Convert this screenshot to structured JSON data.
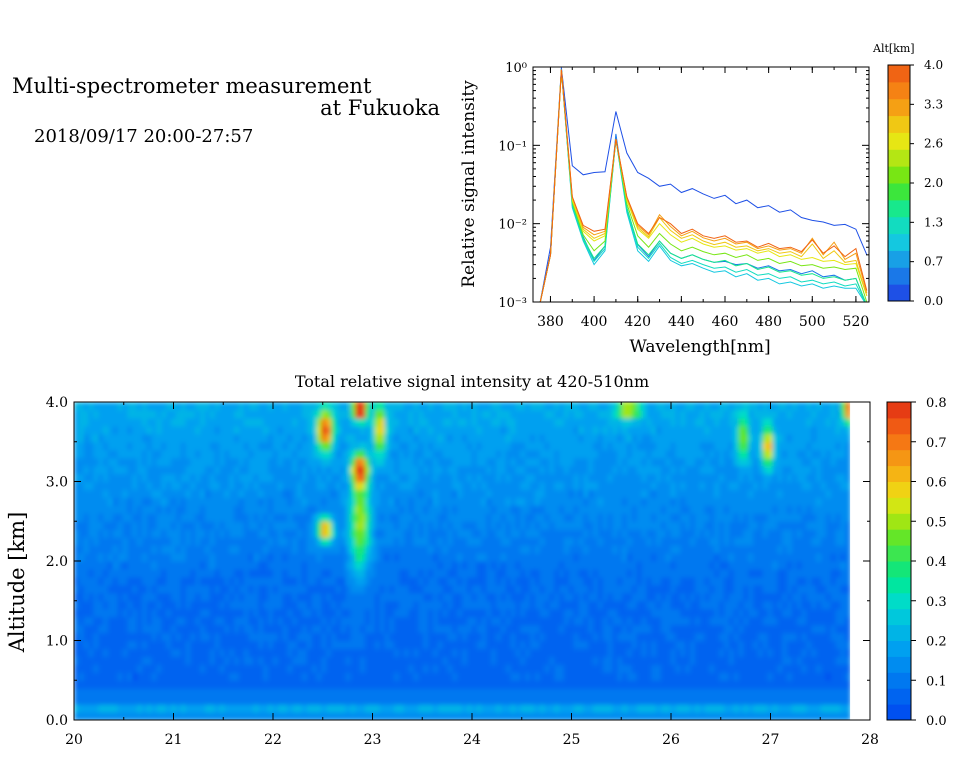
{
  "header": {
    "title_line1": "Multi-spectrometer measurement",
    "title_line2": "at Fukuoka",
    "datetime": "2018/09/17 20:00-27:57"
  },
  "chart_data": [
    {
      "type": "line",
      "title": "",
      "xlabel": "Wavelength[nm]",
      "ylabel": "Relative signal intensity",
      "x_ticks": [
        380,
        400,
        420,
        440,
        460,
        480,
        500,
        520
      ],
      "xlim": [
        372,
        526
      ],
      "ylim": [
        0.001,
        1
      ],
      "yscale": "log",
      "y_tick_labels": [
        "10⁻³",
        "10⁻²",
        "10⁻¹",
        "10⁰"
      ],
      "colorbar": {
        "label": "Alt[km]",
        "tick_labels": [
          "4.0",
          "3.3",
          "2.6",
          "2.0",
          "1.3",
          "0.7",
          "0.0"
        ],
        "range": [
          0,
          4
        ],
        "colors": [
          "#1e50e6",
          "#1a78e8",
          "#18a0e6",
          "#14c8e0",
          "#12dcc0",
          "#18e88c",
          "#3ce63c",
          "#78e614",
          "#b4e614",
          "#e6e614",
          "#f0c814",
          "#f5a014",
          "#f58214",
          "#f06414"
        ]
      },
      "x": [
        375,
        380,
        385,
        390,
        395,
        400,
        405,
        410,
        415,
        420,
        425,
        430,
        435,
        440,
        445,
        450,
        455,
        460,
        465,
        470,
        475,
        480,
        485,
        490,
        495,
        500,
        505,
        510,
        515,
        520,
        525
      ],
      "series": [
        {
          "alt": 0.05,
          "color": "#1e50e6",
          "values": [
            0.0009,
            0.005,
            0.98,
            0.055,
            0.042,
            0.045,
            0.046,
            0.27,
            0.08,
            0.045,
            0.038,
            0.03,
            0.032,
            0.025,
            0.028,
            0.024,
            0.021,
            0.023,
            0.018,
            0.02,
            0.016,
            0.017,
            0.014,
            0.015,
            0.012,
            0.011,
            0.0105,
            0.0095,
            0.0098,
            0.0085,
            0.004
          ]
        },
        {
          "alt": 0.5,
          "color": "#1a78e8",
          "values": [
            0.0009,
            0.004,
            0.95,
            0.018,
            0.0068,
            0.0034,
            0.0052,
            0.14,
            0.016,
            0.0054,
            0.0038,
            0.006,
            0.0042,
            0.0036,
            0.004,
            0.0035,
            0.0032,
            0.0033,
            0.003,
            0.0031,
            0.0027,
            0.0029,
            0.0025,
            0.0026,
            0.0023,
            0.0025,
            0.0021,
            0.0022,
            0.0019,
            0.002,
            0.0009
          ]
        },
        {
          "alt": 1.0,
          "color": "#14c8e0",
          "values": [
            0.0009,
            0.004,
            0.93,
            0.016,
            0.006,
            0.003,
            0.0045,
            0.12,
            0.014,
            0.0045,
            0.0033,
            0.0052,
            0.0034,
            0.0029,
            0.0031,
            0.0027,
            0.0024,
            0.0025,
            0.0021,
            0.0023,
            0.0019,
            0.002,
            0.0017,
            0.0018,
            0.0016,
            0.0017,
            0.0015,
            0.0016,
            0.0015,
            0.0015,
            0.0009
          ]
        },
        {
          "alt": 1.3,
          "color": "#12dcc0",
          "values": [
            0.0009,
            0.004,
            0.92,
            0.017,
            0.0062,
            0.0033,
            0.0048,
            0.12,
            0.015,
            0.005,
            0.0036,
            0.0056,
            0.0037,
            0.0031,
            0.0034,
            0.003,
            0.0027,
            0.0028,
            0.0024,
            0.0026,
            0.0022,
            0.0023,
            0.002,
            0.0021,
            0.0018,
            0.0019,
            0.0017,
            0.0018,
            0.0016,
            0.0017,
            0.0009
          ]
        },
        {
          "alt": 1.7,
          "color": "#18e88c",
          "values": [
            0.0009,
            0.004,
            0.92,
            0.018,
            0.0065,
            0.0036,
            0.0052,
            0.12,
            0.016,
            0.0055,
            0.004,
            0.006,
            0.0042,
            0.0036,
            0.004,
            0.0035,
            0.0032,
            0.0034,
            0.0029,
            0.0031,
            0.0026,
            0.0028,
            0.0024,
            0.0025,
            0.0022,
            0.0023,
            0.002,
            0.0021,
            0.0019,
            0.002,
            0.0009
          ]
        },
        {
          "alt": 2.2,
          "color": "#78e614",
          "values": [
            0.0009,
            0.004,
            0.92,
            0.019,
            0.0072,
            0.0045,
            0.006,
            0.12,
            0.018,
            0.007,
            0.005,
            0.0075,
            0.0055,
            0.0045,
            0.005,
            0.0044,
            0.004,
            0.0042,
            0.0037,
            0.004,
            0.0034,
            0.0036,
            0.0031,
            0.0033,
            0.0029,
            0.003,
            0.0027,
            0.0028,
            0.0026,
            0.0027,
            0.001
          ]
        },
        {
          "alt": 2.7,
          "color": "#e6e614",
          "values": [
            0.0009,
            0.004,
            0.92,
            0.02,
            0.008,
            0.006,
            0.007,
            0.12,
            0.02,
            0.0085,
            0.0065,
            0.01,
            0.0072,
            0.0058,
            0.0065,
            0.0055,
            0.005,
            0.0052,
            0.0046,
            0.0048,
            0.0042,
            0.0045,
            0.0038,
            0.004,
            0.0035,
            0.0037,
            0.0033,
            0.0034,
            0.003,
            0.0031,
            0.0012
          ]
        },
        {
          "alt": 3.1,
          "color": "#f0c814",
          "values": [
            0.0009,
            0.004,
            0.92,
            0.021,
            0.0085,
            0.0065,
            0.0075,
            0.12,
            0.021,
            0.009,
            0.0068,
            0.012,
            0.0082,
            0.0065,
            0.0072,
            0.006,
            0.0054,
            0.0058,
            0.005,
            0.0052,
            0.0045,
            0.0048,
            0.0042,
            0.0044,
            0.0038,
            0.0055,
            0.0036,
            0.0045,
            0.0032,
            0.0034,
            0.0012
          ]
        },
        {
          "alt": 3.5,
          "color": "#f5a014",
          "values": [
            0.0009,
            0.004,
            0.92,
            0.022,
            0.009,
            0.0072,
            0.008,
            0.12,
            0.022,
            0.0095,
            0.0072,
            0.013,
            0.0092,
            0.007,
            0.008,
            0.0066,
            0.006,
            0.0065,
            0.0055,
            0.0058,
            0.0048,
            0.0052,
            0.0046,
            0.0048,
            0.0042,
            0.0065,
            0.004,
            0.0058,
            0.0035,
            0.0042,
            0.0013
          ]
        },
        {
          "alt": 3.9,
          "color": "#f06414",
          "values": [
            0.0009,
            0.004,
            0.92,
            0.022,
            0.0095,
            0.008,
            0.0085,
            0.12,
            0.022,
            0.01,
            0.0075,
            0.012,
            0.01,
            0.0075,
            0.0085,
            0.007,
            0.0065,
            0.007,
            0.0058,
            0.006,
            0.005,
            0.0056,
            0.0048,
            0.005,
            0.0044,
            0.0062,
            0.0042,
            0.0052,
            0.0038,
            0.0048,
            0.0014
          ]
        }
      ]
    },
    {
      "type": "heatmap",
      "title": "Total relative signal intensity at 420-510nm",
      "xlabel": "",
      "ylabel": "Altitude [km]",
      "x_ticks": [
        "20",
        "21",
        "22",
        "23",
        "24",
        "25",
        "26",
        "27",
        "28"
      ],
      "y_ticks": [
        "0.0",
        "1.0",
        "2.0",
        "3.0",
        "4.0"
      ],
      "xlim": [
        20,
        28
      ],
      "ylim": [
        0,
        4
      ],
      "colorbar": {
        "tick_labels": [
          "0.8",
          "0.7",
          "0.6",
          "0.5",
          "0.4",
          "0.3",
          "0.2",
          "0.1",
          "0.0"
        ],
        "range": [
          0,
          0.8
        ],
        "colors": [
          "#0050f0",
          "#0064f0",
          "#0078f0",
          "#008cf0",
          "#00a0f0",
          "#00b4e6",
          "#00c8dc",
          "#00dcc8",
          "#00e6a0",
          "#14e678",
          "#3ce650",
          "#64e628",
          "#a0e614",
          "#d2e614",
          "#f0d214",
          "#f5b414",
          "#f59614",
          "#f57814",
          "#f05a14",
          "#e63c14"
        ]
      },
      "data_extent": {
        "time_end": 27.8
      },
      "features": [
        {
          "time": 22.5,
          "alt": 2.35,
          "value": 0.55,
          "time_width": 0.08,
          "alt_width": 0.15
        },
        {
          "time": 22.5,
          "alt": 3.6,
          "value": 0.62,
          "time_width": 0.08,
          "alt_width": 0.25
        },
        {
          "time": 22.85,
          "alt": 3.1,
          "value": 0.62,
          "time_width": 0.08,
          "alt_width": 0.2
        },
        {
          "time": 22.85,
          "alt": 3.85,
          "value": 0.78,
          "time_width": 0.07,
          "alt_width": 0.12
        },
        {
          "time": 22.85,
          "alt": 2.4,
          "value": 0.4,
          "time_width": 0.1,
          "alt_width": 0.6
        },
        {
          "time": 23.05,
          "alt": 3.6,
          "value": 0.45,
          "time_width": 0.06,
          "alt_width": 0.3
        },
        {
          "time": 25.55,
          "alt": 3.85,
          "value": 0.4,
          "time_width": 0.12,
          "alt_width": 0.12
        },
        {
          "time": 26.7,
          "alt": 3.5,
          "value": 0.32,
          "time_width": 0.06,
          "alt_width": 0.3
        },
        {
          "time": 26.95,
          "alt": 3.4,
          "value": 0.5,
          "time_width": 0.06,
          "alt_width": 0.25
        },
        {
          "time": 27.75,
          "alt": 3.85,
          "value": 0.55,
          "time_width": 0.05,
          "alt_width": 0.15
        }
      ]
    }
  ]
}
